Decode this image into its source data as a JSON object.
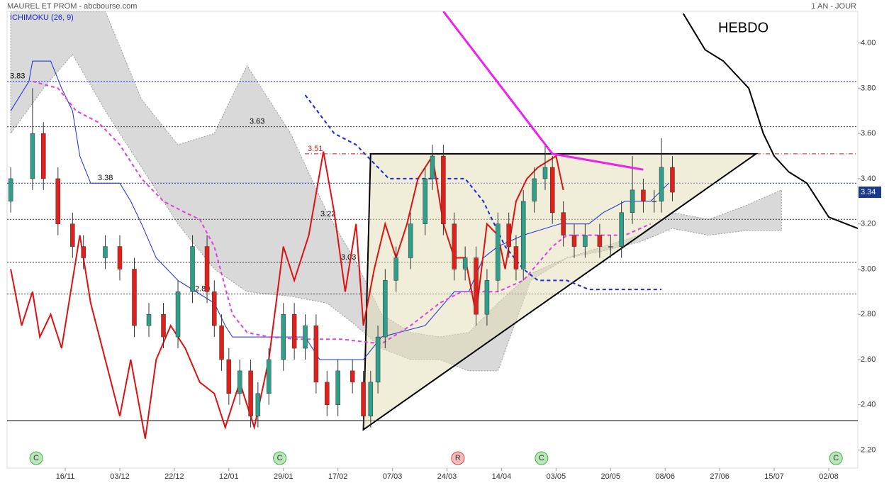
{
  "chart_data": {
    "type": "candlestick",
    "title": "MAUREL ET PROM - abcbourse.com",
    "subtitle": "ICHIMOKU (26, 9)",
    "period": "1 AN - JOUR",
    "annotation": "HEBDO",
    "xlim": [
      0,
      234
    ],
    "ylim": [
      2.12,
      4.14
    ],
    "xticks": [
      {
        "value": 16,
        "label": "16/11"
      },
      {
        "value": 31,
        "label": "03/12"
      },
      {
        "value": 46,
        "label": "22/12"
      },
      {
        "value": 61,
        "label": "12/01"
      },
      {
        "value": 76,
        "label": "29/01"
      },
      {
        "value": 91,
        "label": "17/02"
      },
      {
        "value": 106,
        "label": "07/03"
      },
      {
        "value": 121,
        "label": "24/03"
      },
      {
        "value": 136,
        "label": "14/04"
      },
      {
        "value": 151,
        "label": "03/05"
      },
      {
        "value": 166,
        "label": "20/05"
      },
      {
        "value": 181,
        "label": "08/06"
      },
      {
        "value": 196,
        "label": "27/06"
      },
      {
        "value": 211,
        "label": "15/07"
      },
      {
        "value": 226,
        "label": "02/08"
      }
    ],
    "yticks": [
      {
        "value": 4,
        "label": "4.00"
      },
      {
        "value": 3.8,
        "label": "3.80"
      },
      {
        "value": 3.6,
        "label": "3.60"
      },
      {
        "value": 3.4,
        "label": "3.40"
      },
      {
        "value": 3.2,
        "label": "3.20"
      },
      {
        "value": 3,
        "label": "3.00"
      },
      {
        "value": 2.8,
        "label": "2.80"
      },
      {
        "value": 2.6,
        "label": "2.60"
      },
      {
        "value": 2.4,
        "label": "2.40"
      },
      {
        "value": 2.2,
        "label": "2.20"
      }
    ],
    "up_color": "#2f9e8a",
    "down_color": "#e0201b",
    "x": [
      1,
      7,
      10,
      14,
      18,
      21,
      27,
      31,
      35,
      39,
      43,
      47,
      51,
      55,
      57,
      59,
      61,
      64,
      67,
      69,
      72,
      76,
      79,
      82,
      85,
      88,
      91,
      95,
      98,
      100,
      102,
      104,
      107,
      111,
      115,
      117,
      120,
      123,
      126,
      129,
      132,
      135,
      138,
      140,
      142,
      145,
      148,
      150,
      153,
      156,
      159,
      163,
      166,
      169,
      172,
      175,
      178,
      180,
      183
    ],
    "open": [
      3.3,
      3.4,
      3.6,
      3.4,
      3.2,
      3.1,
      3.05,
      3.1,
      3.0,
      2.75,
      2.8,
      2.7,
      2.9,
      3.1,
      2.9,
      2.75,
      2.6,
      2.45,
      2.55,
      2.35,
      2.45,
      2.6,
      2.8,
      2.65,
      2.75,
      2.5,
      2.4,
      2.55,
      2.5,
      2.35,
      2.5,
      2.7,
      2.95,
      3.05,
      3.2,
      3.4,
      3.5,
      3.2,
      3.0,
      3.05,
      2.8,
      2.95,
      3.2,
      3.1,
      3.0,
      3.3,
      3.4,
      3.45,
      3.25,
      3.15,
      3.1,
      3.15,
      3.1,
      3.1,
      3.25,
      3.35,
      3.3,
      3.3,
      3.45
    ],
    "high": [
      3.45,
      3.8,
      3.65,
      3.45,
      3.25,
      3.15,
      3.15,
      3.15,
      3.05,
      2.85,
      2.85,
      2.95,
      3.15,
      3.15,
      2.95,
      2.8,
      2.65,
      2.6,
      2.6,
      2.5,
      2.65,
      2.85,
      2.85,
      2.8,
      2.8,
      2.55,
      2.6,
      2.6,
      2.55,
      2.55,
      2.75,
      3.0,
      3.1,
      3.25,
      3.45,
      3.55,
      3.55,
      3.25,
      3.1,
      3.1,
      3.0,
      3.25,
      3.25,
      3.15,
      3.35,
      3.45,
      3.55,
      3.5,
      3.3,
      3.2,
      3.2,
      3.2,
      3.15,
      3.3,
      3.5,
      3.4,
      3.35,
      3.58,
      3.5
    ],
    "low": [
      3.25,
      3.35,
      3.35,
      3.15,
      3.05,
      3.0,
      3.0,
      2.95,
      2.7,
      2.7,
      2.65,
      2.65,
      2.85,
      2.85,
      2.7,
      2.55,
      2.4,
      2.4,
      2.3,
      2.3,
      2.4,
      2.55,
      2.6,
      2.6,
      2.45,
      2.35,
      2.35,
      2.45,
      2.3,
      2.3,
      2.45,
      2.65,
      2.9,
      3.0,
      3.15,
      3.35,
      3.15,
      2.95,
      2.95,
      2.75,
      2.75,
      2.9,
      3.05,
      2.95,
      2.95,
      3.25,
      3.35,
      3.2,
      3.1,
      3.05,
      3.05,
      3.05,
      3.05,
      3.05,
      3.2,
      3.25,
      3.25,
      3.25,
      3.3
    ],
    "close": [
      3.4,
      3.6,
      3.4,
      3.2,
      3.1,
      3.05,
      3.1,
      3.0,
      2.75,
      2.8,
      2.7,
      2.9,
      3.1,
      2.9,
      2.75,
      2.6,
      2.45,
      2.55,
      2.35,
      2.45,
      2.6,
      2.8,
      2.65,
      2.75,
      2.5,
      2.4,
      2.55,
      2.5,
      2.35,
      2.5,
      2.7,
      2.95,
      3.05,
      3.2,
      3.4,
      3.5,
      3.2,
      3.0,
      3.05,
      2.8,
      2.95,
      3.2,
      3.1,
      3.0,
      3.3,
      3.4,
      3.45,
      3.25,
      3.15,
      3.1,
      3.15,
      3.1,
      3.1,
      3.25,
      3.35,
      3.3,
      3.3,
      3.45,
      3.34
    ],
    "cloud": {
      "type": "area",
      "color": "#cfcfcf",
      "x": [
        1,
        10,
        18,
        27,
        37,
        47,
        57,
        66,
        78,
        88,
        96,
        103,
        111,
        119,
        127,
        135,
        144,
        154,
        164,
        174,
        183,
        193,
        203,
        213
      ],
      "upper": [
        4.14,
        4.14,
        4.14,
        4.14,
        3.75,
        3.55,
        3.6,
        3.9,
        3.6,
        3.25,
        3.03,
        2.8,
        2.72,
        2.7,
        2.72,
        2.85,
        2.98,
        3.05,
        3.1,
        3.15,
        3.25,
        3.22,
        3.28,
        3.35
      ],
      "lower": [
        3.6,
        3.8,
        3.95,
        3.7,
        3.45,
        3.2,
        3.0,
        2.9,
        2.88,
        2.85,
        2.75,
        2.65,
        2.6,
        2.6,
        2.55,
        2.55,
        2.95,
        3.05,
        3.08,
        3.12,
        3.18,
        3.15,
        3.17,
        3.17
      ]
    },
    "levels": [
      {
        "value": 3.83,
        "color": "#1a2ad8",
        "dash": "2,2"
      },
      {
        "value": 3.63,
        "color": "#333333",
        "dash": "2,2"
      },
      {
        "value": 3.51,
        "color": "#d01818",
        "dash": "6,3,1,3"
      },
      {
        "value": 3.38,
        "color": "#1a2ad8",
        "dash": "2,2"
      },
      {
        "value": 3.22,
        "color": "#333333",
        "dash": "2,2"
      },
      {
        "value": 3.03,
        "color": "#333333",
        "dash": "2,2"
      },
      {
        "value": 2.89,
        "color": "#333333",
        "dash": "2,2"
      },
      {
        "value": 2.33,
        "color": "#000000",
        "dash": "none"
      }
    ],
    "triangle": {
      "x": [
        98,
        100,
        206
      ],
      "values": [
        2.29,
        3.51,
        3.51
      ]
    },
    "lines": [
      {
        "color": "#1a2ad8",
        "width": 1,
        "dashed": false,
        "x": [
          1,
          6,
          7,
          12,
          15,
          18,
          20,
          23,
          31,
          34,
          37,
          41,
          47,
          57,
          60,
          62,
          72,
          82,
          86,
          92,
          98,
          103,
          115,
          123,
          127,
          131,
          135,
          142,
          152,
          160,
          164,
          170,
          177,
          182
        ],
        "values": [
          3.7,
          3.83,
          3.92,
          3.92,
          3.8,
          3.7,
          3.5,
          3.38,
          3.38,
          3.3,
          3.2,
          3.05,
          2.95,
          2.85,
          2.75,
          2.7,
          2.7,
          2.7,
          2.6,
          2.6,
          2.6,
          2.7,
          2.75,
          2.9,
          2.9,
          3.05,
          3.1,
          3.15,
          3.2,
          3.2,
          3.25,
          3.3,
          3.3,
          3.38
        ]
      },
      {
        "color": "#e040e0",
        "width": 2,
        "dashed": true,
        "x": [
          7,
          14,
          19,
          25,
          31,
          37,
          43,
          49,
          53,
          57,
          62,
          66,
          72,
          80,
          92,
          103,
          111,
          119,
          125,
          135,
          142,
          150,
          154,
          162,
          170,
          177
        ],
        "values": [
          3.83,
          3.8,
          3.7,
          3.65,
          3.55,
          3.4,
          3.3,
          3.25,
          3.22,
          3.1,
          2.8,
          2.72,
          2.7,
          2.69,
          2.69,
          2.67,
          2.75,
          2.85,
          2.9,
          2.9,
          2.95,
          3.1,
          3.15,
          3.15,
          3.15,
          3.2
        ]
      },
      {
        "color": "#1a2ad8",
        "width": 2,
        "dashed": true,
        "x": [
          82,
          90,
          96,
          105,
          119,
          126,
          131,
          137,
          142,
          146,
          154,
          160,
          180
        ],
        "values": [
          3.77,
          3.6,
          3.55,
          3.4,
          3.4,
          3.4,
          3.3,
          3.1,
          3.0,
          2.95,
          2.95,
          2.91,
          2.91
        ]
      },
      {
        "color": "#e01010",
        "width": 2,
        "dashed": false,
        "x": [
          1,
          4,
          7,
          9,
          12,
          15,
          18,
          20,
          23,
          27,
          31,
          34,
          38,
          41,
          45,
          49,
          53,
          57,
          60,
          64,
          68,
          72,
          76,
          79,
          83,
          87,
          90,
          93,
          96,
          98,
          101,
          104,
          107,
          110,
          113,
          117,
          120,
          123,
          126,
          129,
          132,
          135,
          137,
          140,
          143,
          146,
          151,
          153
        ],
        "values": [
          3.0,
          2.75,
          2.9,
          2.7,
          2.8,
          2.65,
          2.95,
          3.15,
          2.85,
          2.6,
          2.35,
          2.6,
          2.25,
          2.6,
          2.75,
          2.65,
          2.5,
          2.45,
          2.3,
          2.5,
          2.3,
          2.6,
          3.1,
          2.95,
          3.15,
          3.52,
          3.25,
          2.9,
          3.2,
          2.75,
          3.0,
          3.2,
          3.05,
          3.2,
          3.4,
          3.5,
          3.2,
          3.05,
          3.05,
          2.8,
          3.2,
          3.15,
          3.0,
          3.3,
          3.4,
          3.45,
          3.5,
          3.35
        ]
      },
      {
        "color": "#ee22ee",
        "width": 3,
        "dashed": false,
        "x": [
          120,
          150,
          175
        ],
        "values": [
          4.14,
          3.51,
          3.44
        ]
      },
      {
        "color": "#000000",
        "width": 2,
        "dashed": false,
        "x": [
          186,
          192,
          197,
          204,
          208,
          211,
          215,
          220,
          226,
          234
        ],
        "values": [
          4.13,
          3.97,
          3.92,
          3.8,
          3.6,
          3.5,
          3.43,
          3.38,
          3.23,
          3.18
        ]
      }
    ],
    "markers": [
      {
        "x": 8,
        "label": "C",
        "color": "#3cb43c"
      },
      {
        "x": 75,
        "label": "C",
        "color": "#3cb43c"
      },
      {
        "x": 124,
        "label": "R",
        "color": "#e04040"
      },
      {
        "x": 147,
        "label": "C",
        "color": "#3cb43c"
      },
      {
        "x": 228,
        "label": "C",
        "color": "#3cb43c"
      }
    ]
  }
}
